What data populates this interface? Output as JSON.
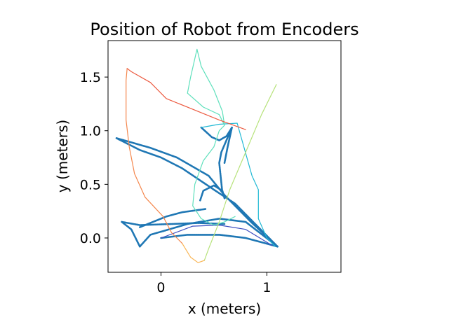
{
  "chart_data": {
    "type": "line",
    "title": "Position of Robot from Encoders",
    "xlabel": "x (meters)",
    "ylabel": "y (meters)",
    "xlim": [
      -0.5,
      1.7
    ],
    "ylim": [
      -0.32,
      1.84
    ],
    "x_ticks": [
      0,
      1
    ],
    "x_tick_labels": [
      "0",
      "1"
    ],
    "y_ticks": [
      0.0,
      0.5,
      1.0,
      1.5
    ],
    "y_tick_labels": [
      "0.0",
      "0.5",
      "1.0",
      "1.5"
    ],
    "grid": false,
    "legend": "none",
    "series": [
      {
        "color": "#1f77b4",
        "style": "dotted-markers",
        "segments": [
          [
            [
              0.0,
              0.0
            ],
            [
              0.25,
              0.03
            ],
            [
              0.55,
              0.03
            ],
            [
              0.8,
              0.0
            ],
            [
              1.1,
              -0.08
            ]
          ],
          [
            [
              -0.2,
              -0.08
            ],
            [
              -0.1,
              0.03
            ],
            [
              0.25,
              0.13
            ],
            [
              0.55,
              0.18
            ],
            [
              0.8,
              0.15
            ],
            [
              1.1,
              -0.08
            ]
          ],
          [
            [
              -0.2,
              -0.08
            ],
            [
              -0.28,
              0.08
            ],
            [
              -0.37,
              0.15
            ]
          ],
          [
            [
              -0.37,
              0.15
            ],
            [
              -0.2,
              0.12
            ],
            [
              0.1,
              0.13
            ],
            [
              0.35,
              0.14
            ],
            [
              0.6,
              0.13
            ]
          ],
          [
            [
              -0.2,
              0.1
            ],
            [
              0.05,
              0.2
            ],
            [
              0.2,
              0.24
            ],
            [
              0.42,
              0.27
            ]
          ],
          [
            [
              1.1,
              -0.08
            ],
            [
              0.85,
              0.15
            ],
            [
              0.6,
              0.4
            ],
            [
              0.45,
              0.58
            ],
            [
              0.15,
              0.75
            ],
            [
              -0.1,
              0.84
            ],
            [
              -0.42,
              0.93
            ]
          ],
          [
            [
              -0.42,
              0.93
            ],
            [
              -0.2,
              0.82
            ],
            [
              0.0,
              0.75
            ],
            [
              0.2,
              0.65
            ],
            [
              0.35,
              0.55
            ],
            [
              0.5,
              0.45
            ],
            [
              0.7,
              0.32
            ],
            [
              1.1,
              -0.08
            ]
          ],
          [
            [
              0.37,
              0.35
            ],
            [
              0.4,
              0.44
            ],
            [
              0.5,
              0.49
            ],
            [
              0.58,
              0.44
            ],
            [
              0.6,
              0.37
            ]
          ],
          [
            [
              0.38,
              1.03
            ],
            [
              0.48,
              0.94
            ],
            [
              0.55,
              0.91
            ],
            [
              0.62,
              0.95
            ],
            [
              0.67,
              1.03
            ],
            [
              0.57,
              0.8
            ],
            [
              0.55,
              0.7
            ],
            [
              0.58,
              0.42
            ]
          ],
          [
            [
              0.67,
              1.03
            ],
            [
              0.63,
              0.85
            ],
            [
              0.6,
              0.7
            ]
          ]
        ]
      },
      {
        "color": "#3b4cc0",
        "style": "line",
        "segments": [
          [
            [
              0.0,
              0.0
            ],
            [
              0.3,
              0.11
            ],
            [
              0.55,
              0.12
            ],
            [
              0.8,
              0.08
            ],
            [
              1.05,
              -0.07
            ]
          ]
        ]
      },
      {
        "color": "#1fb8d4",
        "style": "line",
        "segments": [
          [
            [
              0.38,
              1.03
            ],
            [
              0.55,
              1.06
            ],
            [
              0.72,
              1.07
            ],
            [
              0.86,
              0.58
            ],
            [
              0.92,
              0.45
            ],
            [
              0.92,
              0.18
            ],
            [
              1.0,
              0.0
            ],
            [
              1.08,
              -0.08
            ]
          ]
        ]
      },
      {
        "color": "#5fe0bc",
        "style": "line",
        "segments": [
          [
            [
              0.6,
              1.05
            ],
            [
              0.55,
              1.15
            ],
            [
              0.4,
              1.22
            ],
            [
              0.25,
              1.35
            ],
            [
              0.28,
              1.5
            ],
            [
              0.34,
              1.76
            ],
            [
              0.38,
              1.6
            ],
            [
              0.5,
              1.38
            ],
            [
              0.58,
              1.18
            ],
            [
              0.6,
              1.05
            ],
            [
              0.55,
              1.0
            ],
            [
              0.5,
              0.85
            ],
            [
              0.4,
              0.72
            ],
            [
              0.32,
              0.5
            ],
            [
              0.3,
              0.3
            ],
            [
              0.38,
              0.18
            ],
            [
              0.5,
              0.12
            ],
            [
              0.6,
              0.15
            ],
            [
              0.7,
              0.2
            ]
          ]
        ]
      },
      {
        "color": "#b6e27a",
        "style": "line",
        "segments": [
          [
            [
              1.09,
              1.43
            ],
            [
              0.95,
              1.15
            ],
            [
              0.8,
              0.8
            ],
            [
              0.65,
              0.45
            ],
            [
              0.55,
              0.15
            ],
            [
              0.45,
              -0.1
            ],
            [
              0.41,
              -0.21
            ]
          ]
        ]
      },
      {
        "color": "#f9b452",
        "style": "line",
        "segments": [
          [
            [
              0.41,
              -0.21
            ],
            [
              0.35,
              -0.23
            ],
            [
              0.28,
              -0.18
            ],
            [
              0.2,
              -0.05
            ]
          ]
        ]
      },
      {
        "color": "#f4874d",
        "style": "line",
        "segments": [
          [
            [
              0.2,
              -0.05
            ],
            [
              0.1,
              0.05
            ],
            [
              0.02,
              0.2
            ],
            [
              -0.15,
              0.38
            ],
            [
              -0.25,
              0.6
            ],
            [
              -0.3,
              0.85
            ],
            [
              -0.33,
              1.1
            ],
            [
              -0.33,
              1.3
            ],
            [
              -0.33,
              1.47
            ],
            [
              -0.32,
              1.58
            ]
          ]
        ]
      },
      {
        "color": "#ec5a40",
        "style": "line",
        "segments": [
          [
            [
              -0.32,
              1.58
            ],
            [
              -0.28,
              1.55
            ],
            [
              -0.1,
              1.45
            ],
            [
              0.05,
              1.3
            ],
            [
              0.3,
              1.2
            ],
            [
              0.55,
              1.1
            ],
            [
              0.8,
              1.01
            ]
          ]
        ]
      }
    ]
  }
}
